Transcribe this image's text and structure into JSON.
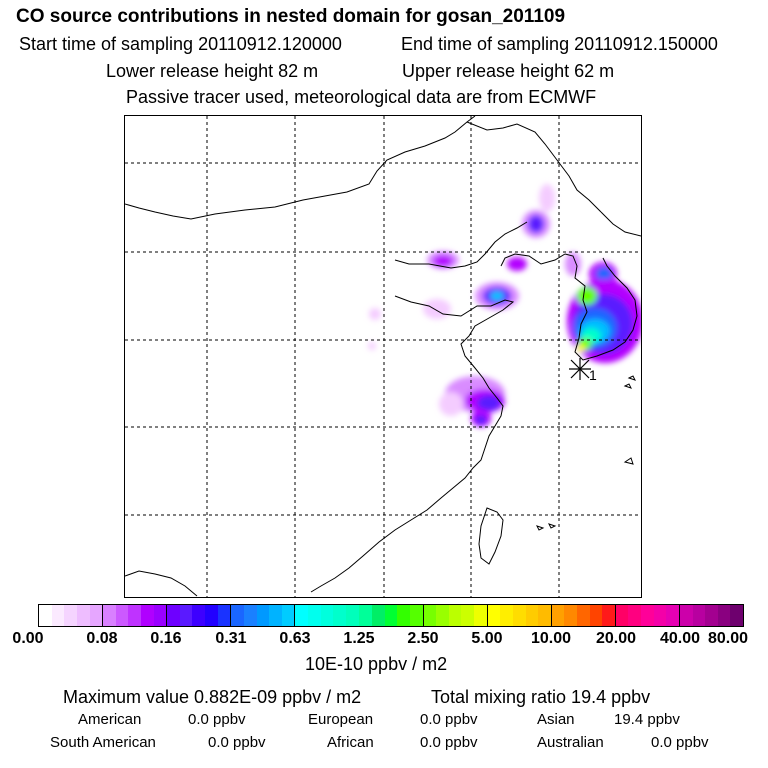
{
  "header": {
    "title": "CO  source contributions in nested domain for gosan_201109",
    "start_sampling": "Start time of sampling 20110912.120000",
    "end_sampling": "End time of sampling 20110912.150000",
    "lower_release": "Lower release height   82 m",
    "upper_release": "Upper release height   62 m",
    "note": "Passive tracer used, meteorological data are from ECMWF"
  },
  "map": {
    "receptor_marker": "asterisk-receptor",
    "receptor_label": "1",
    "plume_colors": [
      "#f4ccff",
      "#d98cff",
      "#b300ff",
      "#5a1aff",
      "#1a66ff",
      "#00bfff",
      "#00ffcc",
      "#66ff00",
      "#ffff00"
    ]
  },
  "colorbar": {
    "tick_labels": [
      "0.00",
      "0.08",
      "0.16",
      "0.31",
      "0.63",
      "1.25",
      "2.50",
      "5.00",
      "10.00",
      "20.00",
      "40.00",
      "80.00"
    ],
    "segments": [
      [
        "#ffffff",
        "#fbeaff",
        "#f5d4ff",
        "#eebdff",
        "#e6a6ff"
      ],
      [
        "#d980ff",
        "#cc59ff",
        "#bf33ff",
        "#b000ff",
        "#9a00ff"
      ],
      [
        "#6e00ff",
        "#5a1aff",
        "#3d00ff",
        "#2200ff",
        "#1a33ff"
      ],
      [
        "#1a66ff",
        "#1a80ff",
        "#0099ff",
        "#00b3ff",
        "#00ccff"
      ],
      [
        "#00ffff",
        "#00ffee",
        "#00ffdd",
        "#00ffcc",
        "#00ffbb"
      ],
      [
        "#00ff99",
        "#00ee66",
        "#00ff33",
        "#33ff00",
        "#55ff00"
      ],
      [
        "#77ff00",
        "#99ff00",
        "#bbff00",
        "#ccff00",
        "#eeff00"
      ],
      [
        "#ffff00",
        "#ffee00",
        "#ffdd00",
        "#ffcc00",
        "#ffbb00"
      ],
      [
        "#ffa000",
        "#ff8800",
        "#ff6600",
        "#ff4400",
        "#ff1a1a"
      ],
      [
        "#ff0066",
        "#ff0080",
        "#ff0099",
        "#f400a8",
        "#e600b3"
      ],
      [
        "#cc00aa",
        "#b800a0",
        "#a30090",
        "#8a0080",
        "#6e006e"
      ]
    ],
    "units": "10E-10 ppbv / m2"
  },
  "summary": {
    "max_value": "Maximum value  0.882E-09 ppbv / m2",
    "total_mixing": "Total mixing ratio       19.4 ppbv",
    "american_label": "American",
    "american_value": "0.0 ppbv",
    "european_label": "European",
    "european_value": "0.0 ppbv",
    "asian_label": "Asian",
    "asian_value": "19.4 ppbv",
    "south_american_label": "South American",
    "south_american_value": "0.0 ppbv",
    "african_label": "African",
    "african_value": "0.0 ppbv",
    "australian_label": "Australian",
    "australian_value": "0.0 ppbv"
  }
}
